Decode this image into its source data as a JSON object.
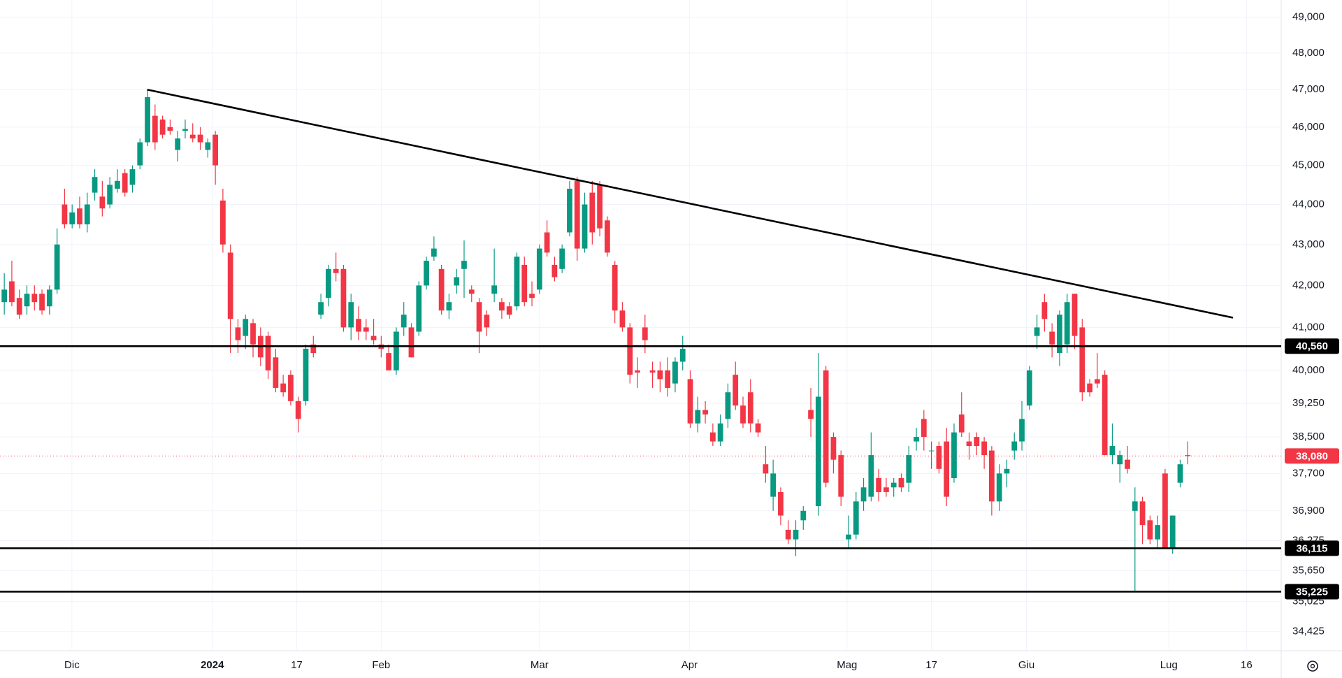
{
  "chart_data": {
    "type": "candlestick",
    "log_scale": true,
    "grid": true,
    "up_color": "#089981",
    "down_color": "#f23645",
    "xlim": [
      -0.57,
      169.4
    ],
    "ylim": [
      49484,
      34050
    ],
    "xticks": [
      {
        "value": 8.97,
        "label": "Dic"
      },
      {
        "value": 27.6,
        "label": "2024"
      },
      {
        "value": 38.8,
        "label": "17"
      },
      {
        "value": 50.0,
        "label": "Feb"
      },
      {
        "value": 71.0,
        "label": "Mar"
      },
      {
        "value": 90.9,
        "label": "Apr"
      },
      {
        "value": 111.8,
        "label": "Mag"
      },
      {
        "value": 123.0,
        "label": "17"
      },
      {
        "value": 135.6,
        "label": "Giu"
      },
      {
        "value": 154.5,
        "label": "Lug"
      },
      {
        "value": 164.8,
        "label": "16"
      }
    ],
    "yticks": [
      {
        "value": 49000,
        "label": "49,000"
      },
      {
        "value": 48000,
        "label": "48,000"
      },
      {
        "value": 47000,
        "label": "47,000"
      },
      {
        "value": 46000,
        "label": "46,000"
      },
      {
        "value": 45000,
        "label": "45,000"
      },
      {
        "value": 44000,
        "label": "44,000"
      },
      {
        "value": 43000,
        "label": "43,000"
      },
      {
        "value": 42000,
        "label": "42,000"
      },
      {
        "value": 41000,
        "label": "41,000"
      },
      {
        "value": 40000,
        "label": "40,000"
      },
      {
        "value": 39250,
        "label": "39,250"
      },
      {
        "value": 38500,
        "label": "38,500"
      },
      {
        "value": 37700,
        "label": "37,700"
      },
      {
        "value": 36900,
        "label": "36,900"
      },
      {
        "value": 36275,
        "label": "36,275"
      },
      {
        "value": 35650,
        "label": "35,650"
      },
      {
        "value": 35025,
        "label": "35,025"
      },
      {
        "value": 34425,
        "label": "34,425"
      }
    ],
    "levels": [
      {
        "value": 40560,
        "label": "40,560"
      },
      {
        "value": 36115,
        "label": "36,115"
      },
      {
        "value": 35225,
        "label": "35,225"
      }
    ],
    "last_price": {
      "value": 38080,
      "label": "38,080",
      "color": "#f23645"
    },
    "trendline": {
      "x": [
        18.96,
        163.0
      ],
      "y": [
        47000,
        41230
      ],
      "color": "#000000"
    },
    "candles": [
      [
        41600,
        42300,
        41300,
        41900
      ],
      [
        42100,
        42600,
        41500,
        41600
      ],
      [
        41700,
        41900,
        41200,
        41300
      ],
      [
        41500,
        42000,
        41300,
        41800
      ],
      [
        41800,
        42000,
        41400,
        41600
      ],
      [
        41800,
        41900,
        41300,
        41400
      ],
      [
        41500,
        42000,
        41300,
        41900
      ],
      [
        41900,
        43400,
        41800,
        43000
      ],
      [
        44000,
        44400,
        43400,
        43500
      ],
      [
        43500,
        44000,
        43400,
        43800
      ],
      [
        43900,
        44200,
        43400,
        43500
      ],
      [
        43500,
        44300,
        43300,
        44000
      ],
      [
        44300,
        44900,
        44100,
        44700
      ],
      [
        44200,
        44600,
        43700,
        43900
      ],
      [
        44000,
        44700,
        43900,
        44500
      ],
      [
        44400,
        44900,
        44300,
        44600
      ],
      [
        44800,
        44900,
        44200,
        44300
      ],
      [
        44500,
        45000,
        44300,
        44900
      ],
      [
        45000,
        45700,
        44900,
        45600
      ],
      [
        45600,
        47000,
        45500,
        46800
      ],
      [
        46300,
        46600,
        45400,
        45600
      ],
      [
        46200,
        46300,
        45700,
        45800
      ],
      [
        46000,
        46200,
        45800,
        45900
      ],
      [
        45400,
        45900,
        45100,
        45700
      ],
      [
        45900,
        46200,
        45700,
        45950
      ],
      [
        45800,
        46100,
        45600,
        45700
      ],
      [
        45800,
        46000,
        45400,
        45600
      ],
      [
        45400,
        45700,
        45200,
        45600
      ],
      [
        45800,
        45900,
        44500,
        45000
      ],
      [
        44100,
        44400,
        42800,
        43000
      ],
      [
        42800,
        43000,
        40400,
        41200
      ],
      [
        41000,
        41200,
        40400,
        40700
      ],
      [
        40800,
        41300,
        40500,
        41200
      ],
      [
        41100,
        41200,
        40300,
        40600
      ],
      [
        40800,
        41000,
        40100,
        40300
      ],
      [
        40800,
        40900,
        39800,
        40000
      ],
      [
        40300,
        40500,
        39500,
        39600
      ],
      [
        39700,
        39900,
        39400,
        39500
      ],
      [
        39900,
        40000,
        39200,
        39300
      ],
      [
        39300,
        39400,
        38600,
        38900
      ],
      [
        39300,
        40600,
        39200,
        40500
      ],
      [
        40600,
        40800,
        40300,
        40400
      ],
      [
        41300,
        41800,
        41200,
        41600
      ],
      [
        41700,
        42500,
        41500,
        42400
      ],
      [
        42400,
        42800,
        42100,
        42300
      ],
      [
        42400,
        42500,
        40900,
        41000
      ],
      [
        41000,
        41800,
        40700,
        41600
      ],
      [
        41200,
        41500,
        40700,
        40900
      ],
      [
        41000,
        41200,
        40700,
        40900
      ],
      [
        40800,
        41200,
        40600,
        40700
      ],
      [
        40600,
        40800,
        40300,
        40500
      ],
      [
        40400,
        40600,
        40000,
        40000
      ],
      [
        40000,
        41000,
        39900,
        40900
      ],
      [
        41000,
        41600,
        40800,
        41300
      ],
      [
        41000,
        41100,
        40300,
        40300
      ],
      [
        40900,
        42100,
        40800,
        42000
      ],
      [
        42000,
        42700,
        41900,
        42600
      ],
      [
        42700,
        43200,
        42600,
        42900
      ],
      [
        42400,
        42500,
        41300,
        41400
      ],
      [
        41400,
        41800,
        41200,
        41600
      ],
      [
        42000,
        42400,
        41800,
        42200
      ],
      [
        42400,
        43100,
        41700,
        42600
      ],
      [
        41900,
        42000,
        41600,
        41800
      ],
      [
        41600,
        41700,
        40400,
        40900
      ],
      [
        41300,
        41400,
        40800,
        41000
      ],
      [
        41800,
        42900,
        41600,
        42000
      ],
      [
        41600,
        41700,
        41200,
        41400
      ],
      [
        41500,
        41600,
        41200,
        41300
      ],
      [
        41500,
        42800,
        41400,
        42700
      ],
      [
        42500,
        42700,
        41500,
        41600
      ],
      [
        41800,
        42100,
        41500,
        41700
      ],
      [
        41900,
        43000,
        41800,
        42900
      ],
      [
        43300,
        43600,
        42700,
        42800
      ],
      [
        42500,
        42700,
        42100,
        42200
      ],
      [
        42400,
        43000,
        42300,
        42900
      ],
      [
        43300,
        44600,
        43200,
        44400
      ],
      [
        44600,
        44700,
        42600,
        42900
      ],
      [
        42900,
        44300,
        42800,
        44000
      ],
      [
        44300,
        44600,
        43000,
        43300
      ],
      [
        44500,
        44600,
        43200,
        43400
      ],
      [
        43600,
        43700,
        42700,
        42800
      ],
      [
        42500,
        42600,
        41100,
        41400
      ],
      [
        41400,
        41600,
        40900,
        41000
      ],
      [
        41000,
        41100,
        39700,
        39900
      ],
      [
        40000,
        40300,
        39600,
        39950
      ],
      [
        41000,
        41300,
        40400,
        40700
      ],
      [
        40000,
        40200,
        39600,
        39950
      ],
      [
        40000,
        40200,
        39500,
        39800
      ],
      [
        40000,
        40300,
        39400,
        39600
      ],
      [
        39700,
        40300,
        39500,
        40200
      ],
      [
        40200,
        40800,
        40000,
        40500
      ],
      [
        39800,
        40000,
        38700,
        38800
      ],
      [
        38800,
        39400,
        38600,
        39100
      ],
      [
        39100,
        39300,
        38800,
        39000
      ],
      [
        38600,
        38800,
        38300,
        38400
      ],
      [
        38400,
        39000,
        38300,
        38800
      ],
      [
        38900,
        39700,
        38700,
        39500
      ],
      [
        39900,
        40200,
        39100,
        39200
      ],
      [
        39200,
        39400,
        38700,
        38800
      ],
      [
        39500,
        39800,
        38600,
        38800
      ],
      [
        38800,
        38900,
        38500,
        38600
      ],
      [
        37900,
        38300,
        37500,
        37700
      ],
      [
        37200,
        38000,
        36900,
        37700
      ],
      [
        37300,
        37400,
        36600,
        36800
      ],
      [
        36500,
        36700,
        36200,
        36300
      ],
      [
        36300,
        36700,
        35950,
        36500
      ],
      [
        36700,
        37000,
        36500,
        36900
      ],
      [
        39100,
        39600,
        38500,
        38900
      ],
      [
        37000,
        40400,
        36800,
        39400
      ],
      [
        40000,
        40100,
        37400,
        37500
      ],
      [
        38500,
        38600,
        37700,
        38000
      ],
      [
        38100,
        38200,
        37000,
        37200
      ],
      [
        36300,
        36800,
        36100,
        36400
      ],
      [
        36400,
        37300,
        36300,
        37100
      ],
      [
        37100,
        37600,
        36900,
        37400
      ],
      [
        37200,
        38600,
        37100,
        38100
      ],
      [
        37600,
        37800,
        37100,
        37300
      ],
      [
        37400,
        37600,
        37200,
        37300
      ],
      [
        37400,
        37600,
        37200,
        37500
      ],
      [
        37600,
        37700,
        37300,
        37400
      ],
      [
        37500,
        38300,
        37300,
        38100
      ],
      [
        38400,
        38700,
        38200,
        38500
      ],
      [
        38900,
        39100,
        38200,
        38500
      ],
      [
        38200,
        38400,
        37800,
        38200
      ],
      [
        38300,
        38400,
        37700,
        37800
      ],
      [
        38400,
        38700,
        37000,
        37200
      ],
      [
        37600,
        38800,
        37500,
        38600
      ],
      [
        39000,
        39500,
        38500,
        38600
      ],
      [
        38400,
        38600,
        38000,
        38300
      ],
      [
        38500,
        38600,
        38100,
        38300
      ],
      [
        38400,
        38500,
        37800,
        38100
      ],
      [
        38200,
        38300,
        36800,
        37100
      ],
      [
        37100,
        37900,
        36900,
        37700
      ],
      [
        37700,
        38000,
        37400,
        37800
      ],
      [
        38200,
        38600,
        38000,
        38400
      ],
      [
        38400,
        39300,
        38200,
        38900
      ],
      [
        39200,
        40100,
        39100,
        40000
      ],
      [
        40800,
        41300,
        40500,
        41000
      ],
      [
        41600,
        41800,
        40900,
        41200
      ],
      [
        40900,
        41100,
        40300,
        40600
      ],
      [
        40400,
        41400,
        40100,
        41300
      ],
      [
        40600,
        41800,
        40400,
        41600
      ],
      [
        41800,
        41800,
        40500,
        40800
      ],
      [
        41000,
        41200,
        39300,
        39500
      ],
      [
        39700,
        39800,
        39400,
        39500
      ],
      [
        39800,
        40400,
        39600,
        39700
      ],
      [
        39900,
        40000,
        38100,
        38100
      ],
      [
        38100,
        38800,
        37900,
        38300
      ],
      [
        37900,
        38200,
        37500,
        38100
      ],
      [
        38000,
        38300,
        37700,
        37800
      ],
      [
        36900,
        37400,
        35225,
        37100
      ],
      [
        37100,
        37200,
        36200,
        36600
      ],
      [
        36700,
        36800,
        36200,
        36300
      ],
      [
        36300,
        36800,
        36100,
        36600
      ],
      [
        37700,
        37800,
        36100,
        36100
      ],
      [
        36100,
        36800,
        36000,
        36800
      ],
      [
        37500,
        38000,
        37400,
        37900
      ],
      [
        38100,
        38400,
        37900,
        38080
      ]
    ]
  }
}
